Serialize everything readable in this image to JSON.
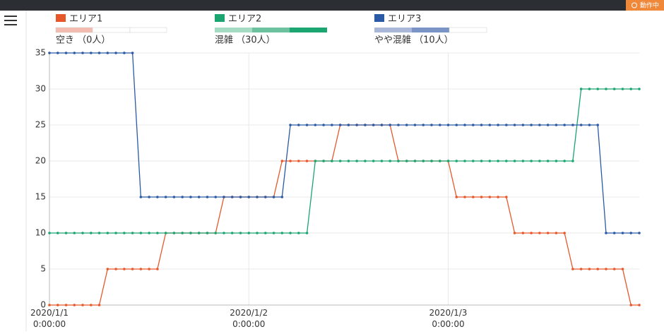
{
  "status_badge": "動作中",
  "chart_data": {
    "type": "line",
    "legend": [
      {
        "name": "エリア1",
        "status": "空き （0人）"
      },
      {
        "name": "エリア2",
        "status": "混雑 （30人）"
      },
      {
        "name": "エリア3",
        "status": "やや混雑 （10人）"
      }
    ],
    "x": [
      "2020/1/1 0:00:00",
      "2020/1/1 1:00:00",
      "2020/1/1 2:00:00",
      "2020/1/1 3:00:00",
      "2020/1/1 4:00:00",
      "2020/1/1 5:00:00",
      "2020/1/1 6:00:00",
      "2020/1/1 7:00:00",
      "2020/1/1 8:00:00",
      "2020/1/1 9:00:00",
      "2020/1/1 10:00:00",
      "2020/1/1 11:00:00",
      "2020/1/1 12:00:00",
      "2020/1/1 13:00:00",
      "2020/1/1 14:00:00",
      "2020/1/1 15:00:00",
      "2020/1/1 16:00:00",
      "2020/1/1 17:00:00",
      "2020/1/1 18:00:00",
      "2020/1/1 19:00:00",
      "2020/1/1 20:00:00",
      "2020/1/1 21:00:00",
      "2020/1/1 22:00:00",
      "2020/1/1 23:00:00",
      "2020/1/2 0:00:00",
      "2020/1/2 1:00:00",
      "2020/1/2 2:00:00",
      "2020/1/2 3:00:00",
      "2020/1/2 4:00:00",
      "2020/1/2 5:00:00",
      "2020/1/2 6:00:00",
      "2020/1/2 7:00:00",
      "2020/1/2 8:00:00",
      "2020/1/2 9:00:00",
      "2020/1/2 10:00:00",
      "2020/1/2 11:00:00",
      "2020/1/2 12:00:00",
      "2020/1/2 13:00:00",
      "2020/1/2 14:00:00",
      "2020/1/2 15:00:00",
      "2020/1/2 16:00:00",
      "2020/1/2 17:00:00",
      "2020/1/2 18:00:00",
      "2020/1/2 19:00:00",
      "2020/1/2 20:00:00",
      "2020/1/2 21:00:00",
      "2020/1/2 22:00:00",
      "2020/1/2 23:00:00",
      "2020/1/3 0:00:00",
      "2020/1/3 1:00:00",
      "2020/1/3 2:00:00",
      "2020/1/3 3:00:00",
      "2020/1/3 4:00:00",
      "2020/1/3 5:00:00",
      "2020/1/3 6:00:00",
      "2020/1/3 7:00:00",
      "2020/1/3 8:00:00",
      "2020/1/3 9:00:00",
      "2020/1/3 10:00:00",
      "2020/1/3 11:00:00",
      "2020/1/3 12:00:00",
      "2020/1/3 13:00:00",
      "2020/1/3 14:00:00",
      "2020/1/3 15:00:00",
      "2020/1/3 16:00:00",
      "2020/1/3 17:00:00",
      "2020/1/3 18:00:00",
      "2020/1/3 19:00:00",
      "2020/1/3 20:00:00",
      "2020/1/3 21:00:00",
      "2020/1/3 22:00:00",
      "2020/1/3 23:00:00"
    ],
    "series": [
      {
        "name": "エリア1",
        "color": "#e8572a",
        "values": [
          0,
          0,
          0,
          0,
          0,
          0,
          0,
          5,
          5,
          5,
          5,
          5,
          5,
          5,
          10,
          10,
          10,
          10,
          10,
          10,
          10,
          15,
          15,
          15,
          15,
          15,
          15,
          15,
          20,
          20,
          20,
          20,
          20,
          20,
          20,
          25,
          25,
          25,
          25,
          25,
          25,
          25,
          20,
          20,
          20,
          20,
          20,
          20,
          20,
          15,
          15,
          15,
          15,
          15,
          15,
          15,
          10,
          10,
          10,
          10,
          10,
          10,
          10,
          5,
          5,
          5,
          5,
          5,
          5,
          5,
          0,
          0
        ]
      },
      {
        "name": "エリア2",
        "color": "#1aa571",
        "values": [
          10,
          10,
          10,
          10,
          10,
          10,
          10,
          10,
          10,
          10,
          10,
          10,
          10,
          10,
          10,
          10,
          10,
          10,
          10,
          10,
          10,
          10,
          10,
          10,
          10,
          10,
          10,
          10,
          10,
          10,
          10,
          10,
          20,
          20,
          20,
          20,
          20,
          20,
          20,
          20,
          20,
          20,
          20,
          20,
          20,
          20,
          20,
          20,
          20,
          20,
          20,
          20,
          20,
          20,
          20,
          20,
          20,
          20,
          20,
          20,
          20,
          20,
          20,
          20,
          30,
          30,
          30,
          30,
          30,
          30,
          30,
          30
        ]
      },
      {
        "name": "エリア3",
        "color": "#2a5aa5",
        "values": [
          35,
          35,
          35,
          35,
          35,
          35,
          35,
          35,
          35,
          35,
          35,
          15,
          15,
          15,
          15,
          15,
          15,
          15,
          15,
          15,
          15,
          15,
          15,
          15,
          15,
          15,
          15,
          15,
          15,
          25,
          25,
          25,
          25,
          25,
          25,
          25,
          25,
          25,
          25,
          25,
          25,
          25,
          25,
          25,
          25,
          25,
          25,
          25,
          25,
          25,
          25,
          25,
          25,
          25,
          25,
          25,
          25,
          25,
          25,
          25,
          25,
          25,
          25,
          25,
          25,
          25,
          25,
          10,
          10,
          10,
          10,
          10
        ]
      }
    ],
    "ylim": [
      0,
      35
    ],
    "yticks": [
      0,
      5,
      10,
      15,
      20,
      25,
      30,
      35
    ],
    "grid": true
  }
}
